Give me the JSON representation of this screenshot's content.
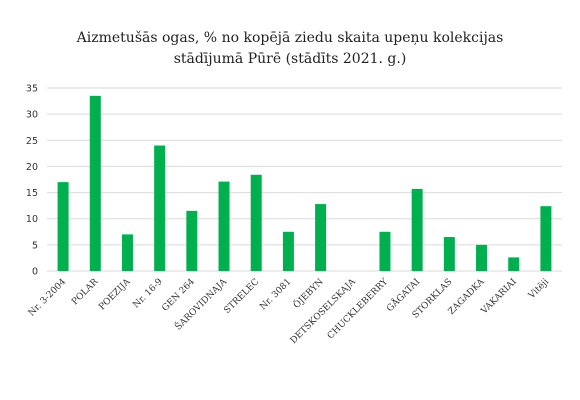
{
  "chart_data": {
    "type": "bar",
    "title_lines": [
      "Aizmetušās ogas, % no kopējā ziedu skaita upeņu kolekcijas",
      "stādījumā Pūrē (stādīts 2021. g.)"
    ],
    "categories": [
      "Nr. 3-2004",
      "POLAR",
      "POEZIJA",
      "Nr. 16-9",
      "GEN 264",
      "ŠAROVIDNAJA",
      "STRELEC",
      "Nr. 3081",
      "ÖJEBYN",
      "DETSKOSELSKAJA",
      "CHUCKLEBERRY",
      "GÅGATAI",
      "STORKLAS",
      "ZAGADKA",
      "VAKARIAI",
      "Vitēji"
    ],
    "values": [
      17.0,
      33.5,
      7.0,
      24.0,
      11.5,
      17.1,
      18.4,
      7.5,
      12.8,
      0,
      7.5,
      15.7,
      6.5,
      5.0,
      2.6,
      12.4
    ],
    "ylim": [
      0,
      35
    ],
    "yticks": [
      0,
      5,
      10,
      15,
      20,
      25,
      30,
      35
    ],
    "grid": true,
    "bar_color": "#00b04f",
    "grid_color": "#d9d9d9"
  }
}
